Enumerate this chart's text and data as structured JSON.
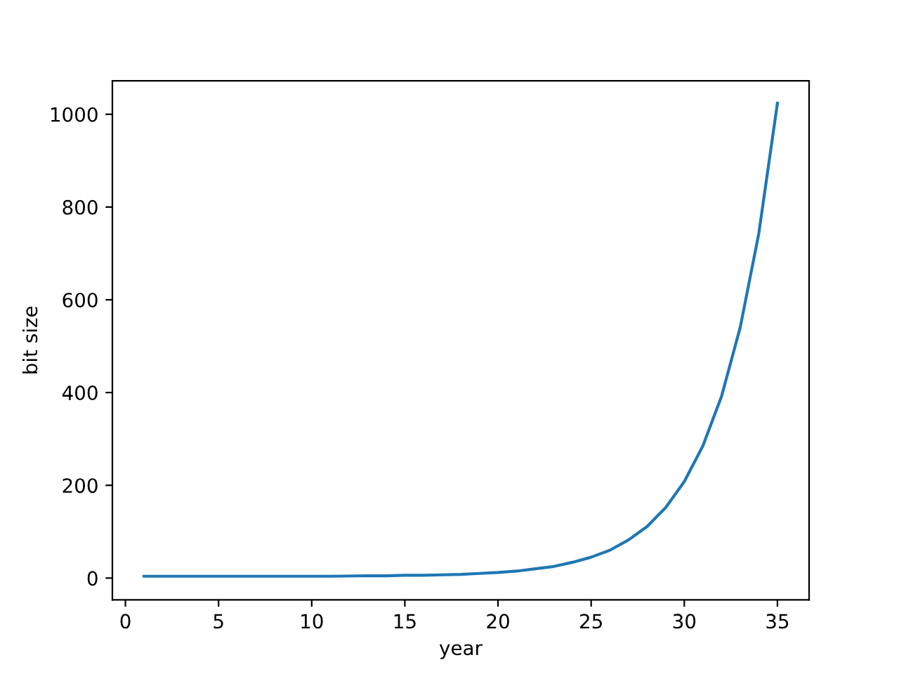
{
  "chart_data": {
    "type": "line",
    "xlabel": "year",
    "ylabel": "bit size",
    "x": [
      1,
      3,
      5,
      7,
      9,
      11,
      13,
      14,
      15,
      16,
      17,
      18,
      19,
      20,
      21,
      22,
      23,
      24,
      25,
      26,
      27,
      28,
      29,
      30,
      31,
      32,
      33,
      34,
      35
    ],
    "series": [
      {
        "color": "#1f77b4",
        "values": [
          4,
          4,
          4,
          4,
          4,
          4,
          5,
          5,
          6,
          6,
          7,
          8,
          10,
          12,
          15,
          20,
          25,
          34,
          45,
          60,
          82,
          111,
          152,
          208,
          285,
          392,
          540,
          743,
          1024
        ]
      }
    ],
    "xlim": [
      -0.7,
      36.7
    ],
    "ylim": [
      -47,
      1072
    ],
    "xticks": [
      0,
      5,
      10,
      15,
      20,
      25,
      30,
      35
    ],
    "yticks": [
      0,
      200,
      400,
      600,
      800,
      1000
    ],
    "grid": false,
    "legend": false,
    "marker": "none",
    "line_style": "solid"
  }
}
